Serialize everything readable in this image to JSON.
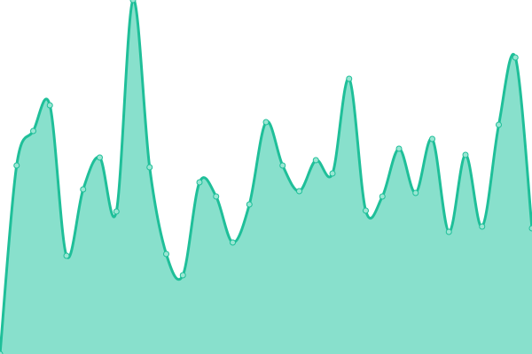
{
  "chart_data": {
    "type": "area",
    "values": [
      0,
      213,
      252,
      281,
      111,
      186,
      222,
      161,
      400,
      211,
      113,
      89,
      194,
      178,
      126,
      169,
      262,
      213,
      184,
      219,
      204,
      311,
      162,
      178,
      232,
      182,
      243,
      138,
      225,
      144,
      259,
      335,
      142
    ],
    "ylim": [
      0,
      400
    ],
    "color": "#1fbf99",
    "fill": "#88e0cc",
    "marker_fill": "#9ae6d3"
  }
}
